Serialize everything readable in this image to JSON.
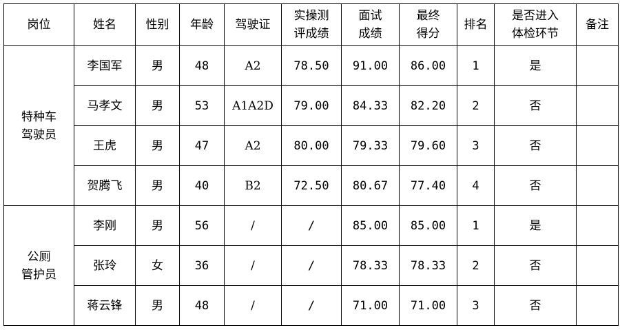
{
  "headers": [
    "岗位",
    "姓名",
    "性别",
    "年龄",
    "驾驶证",
    "实操测\n评成绩",
    "面试\n成绩",
    "最终\n得分",
    "排名",
    "是否进入\n体检环节",
    "备注"
  ],
  "groups": [
    {
      "position": "特种车\n驾驶员",
      "rows": [
        [
          "李国军",
          "男",
          "48",
          "A2",
          "78.50",
          "91.00",
          "86.00",
          "1",
          "是",
          ""
        ],
        [
          "马孝文",
          "男",
          "53",
          "A1A2D",
          "79.00",
          "84.33",
          "82.20",
          "2",
          "否",
          ""
        ],
        [
          "王虎",
          "男",
          "47",
          "A2",
          "80.00",
          "79.33",
          "79.60",
          "3",
          "否",
          ""
        ],
        [
          "贺腾飞",
          "男",
          "40",
          "B2",
          "72.50",
          "80.67",
          "77.40",
          "4",
          "否",
          ""
        ]
      ]
    },
    {
      "position": "公厕\n管护员",
      "rows": [
        [
          "李刚",
          "男",
          "56",
          "/",
          "/",
          "85.00",
          "85.00",
          "1",
          "是",
          ""
        ],
        [
          "张玲",
          "女",
          "36",
          "/",
          "/",
          "78.33",
          "78.33",
          "2",
          "否",
          ""
        ],
        [
          "蒋云锋",
          "男",
          "48",
          "/",
          "/",
          "71.00",
          "71.00",
          "3",
          "否",
          ""
        ]
      ]
    }
  ]
}
